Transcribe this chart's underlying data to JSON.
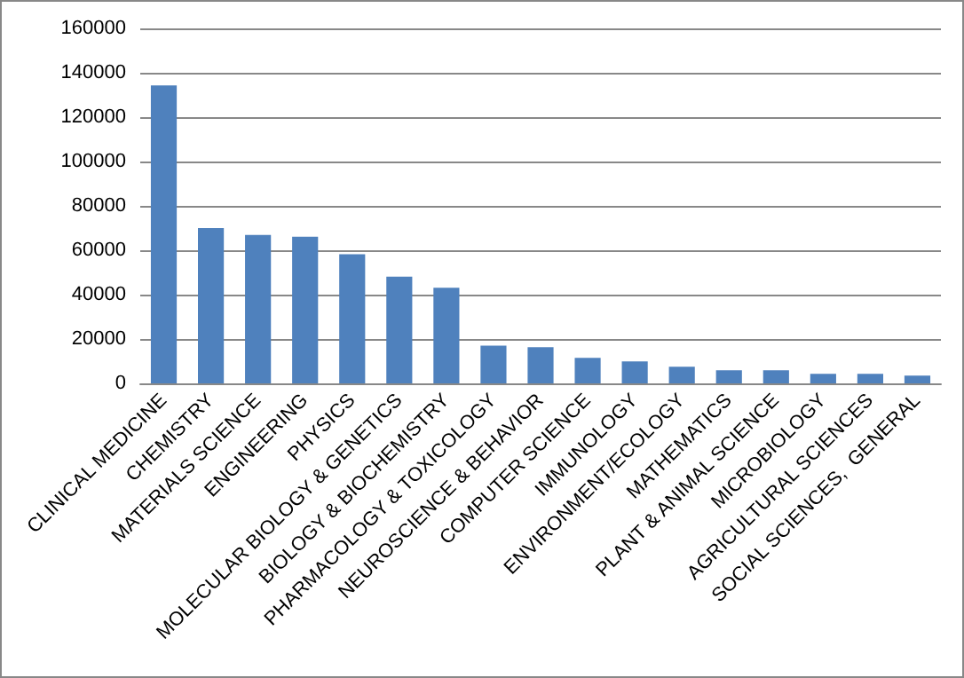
{
  "chart_data": {
    "type": "bar",
    "categories": [
      "CLINICAL MEDICINE",
      "CHEMISTRY",
      "MATERIALS SCIENCE",
      "ENGINEERING",
      "PHYSICS",
      "MOLECULAR BIOLOGY & GENETICS",
      "BIOLOGY & BIOCHEMISTRY",
      "PHARMACOLOGY & TOXICOLOGY",
      "NEUROSCIENCE & BEHAVIOR",
      "COMPUTER SCIENCE",
      "IMMUNOLOGY",
      "ENVIRONMENT/ECOLOGY",
      "MATHEMATICS",
      "PLANT & ANIMAL SCIENCE",
      "MICROBIOLOGY",
      "AGRICULTURAL SCIENCES",
      "SOCIAL SCIENCES,  GENERAL"
    ],
    "values": [
      134300,
      70000,
      66900,
      66100,
      58200,
      48100,
      43100,
      17000,
      16300,
      11500,
      9900,
      7500,
      5900,
      5900,
      4300,
      4300,
      3500
    ],
    "color": "#4f81bd",
    "ylim": [
      0,
      160000
    ],
    "yticks": [
      0,
      20000,
      40000,
      60000,
      80000,
      100000,
      120000,
      140000,
      160000
    ],
    "grid": "y"
  }
}
